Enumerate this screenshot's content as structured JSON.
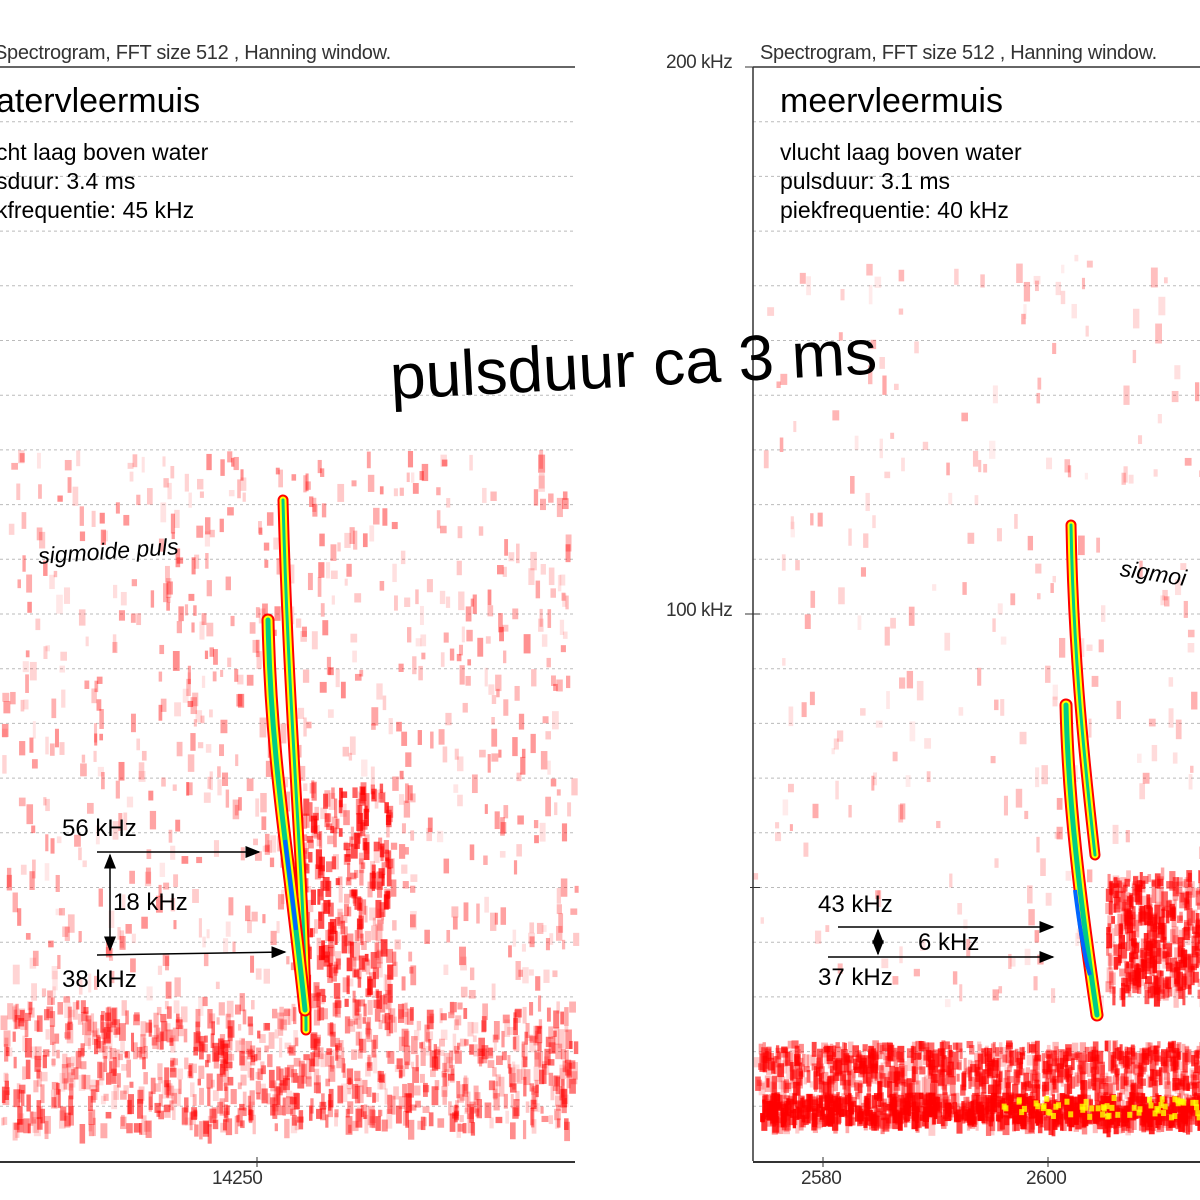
{
  "big_title": "pulsduur ca 3 ms",
  "chart_data": [
    {
      "type": "heatmap",
      "subtitle": "Spectrogram, FFT size 512 , Hanning window.",
      "title": "atervleermuis",
      "info": [
        "cht laag boven water",
        "sduur: 3.4 ms",
        "kfrequentie: 45 kHz"
      ],
      "annotation": "sigmoide puls",
      "ylim": [
        0,
        200
      ],
      "y_unit": "kHz",
      "x_ticks": [
        14250
      ],
      "markers": [
        {
          "label": "56 kHz",
          "value": 56
        },
        {
          "label": "38 kHz",
          "value": 38
        }
      ],
      "difference_label": "18 kHz",
      "colors": {
        "low": "#ff0000",
        "mid": "#ffff00",
        "high": "#00ff00",
        "peak": "#0000ff"
      }
    },
    {
      "type": "heatmap",
      "subtitle": "Spectrogram, FFT size 512 , Hanning window.",
      "title": "meervleermuis",
      "info": [
        "vlucht laag boven water",
        "pulsduur: 3.1 ms",
        "piekfrequentie: 40 kHz"
      ],
      "annotation": "sigmoi",
      "ylim": [
        0,
        200
      ],
      "y_unit": "kHz",
      "y_ticks": [
        {
          "value": 200,
          "label": "200 kHz"
        },
        {
          "value": 100,
          "label": "100 kHz"
        }
      ],
      "x_ticks": [
        {
          "value": 2580,
          "label": "2580"
        },
        {
          "value": 2600,
          "label": "2600"
        }
      ],
      "markers": [
        {
          "label": "43 kHz",
          "value": 43
        },
        {
          "label": "37 kHz",
          "value": 37
        }
      ],
      "difference_label": "6 kHz"
    }
  ]
}
